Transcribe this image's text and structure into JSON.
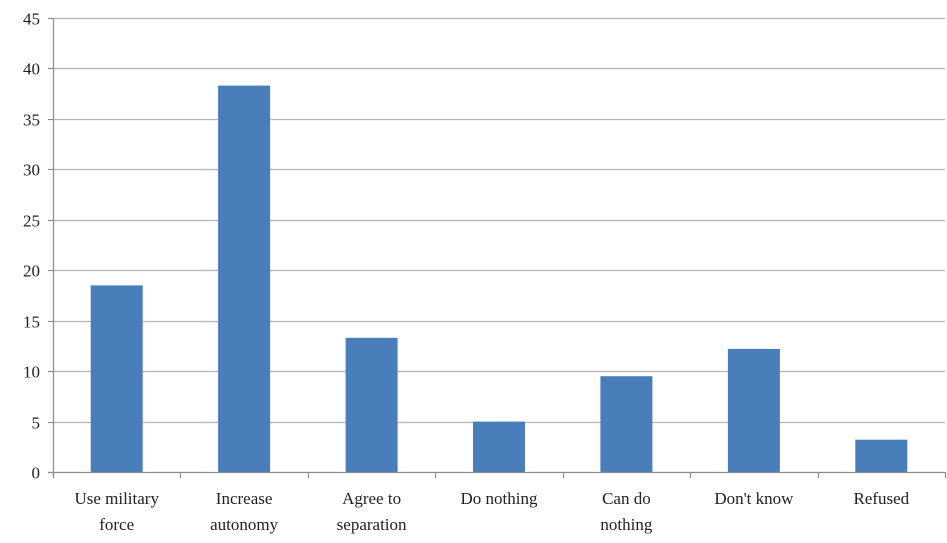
{
  "chart_data": {
    "type": "bar",
    "categories": [
      [
        "Use military",
        "force"
      ],
      [
        "Increase",
        "autonomy"
      ],
      [
        "Agree to",
        "separation"
      ],
      [
        "Do nothing"
      ],
      [
        "Can do",
        "nothing"
      ],
      [
        "Don't know"
      ],
      [
        "Refused"
      ]
    ],
    "values": [
      18.5,
      38.3,
      13.3,
      5.0,
      9.5,
      12.2,
      3.2
    ],
    "ylim": [
      0,
      45
    ],
    "yticks": [
      "0",
      "5",
      "10",
      "15",
      "20",
      "25",
      "30",
      "35",
      "40",
      "45"
    ],
    "grid": true,
    "legend": "none",
    "colors": {
      "bar": "#4a7ebb",
      "grid": "#b5b5b5",
      "axis": "#8c8c8c"
    }
  }
}
